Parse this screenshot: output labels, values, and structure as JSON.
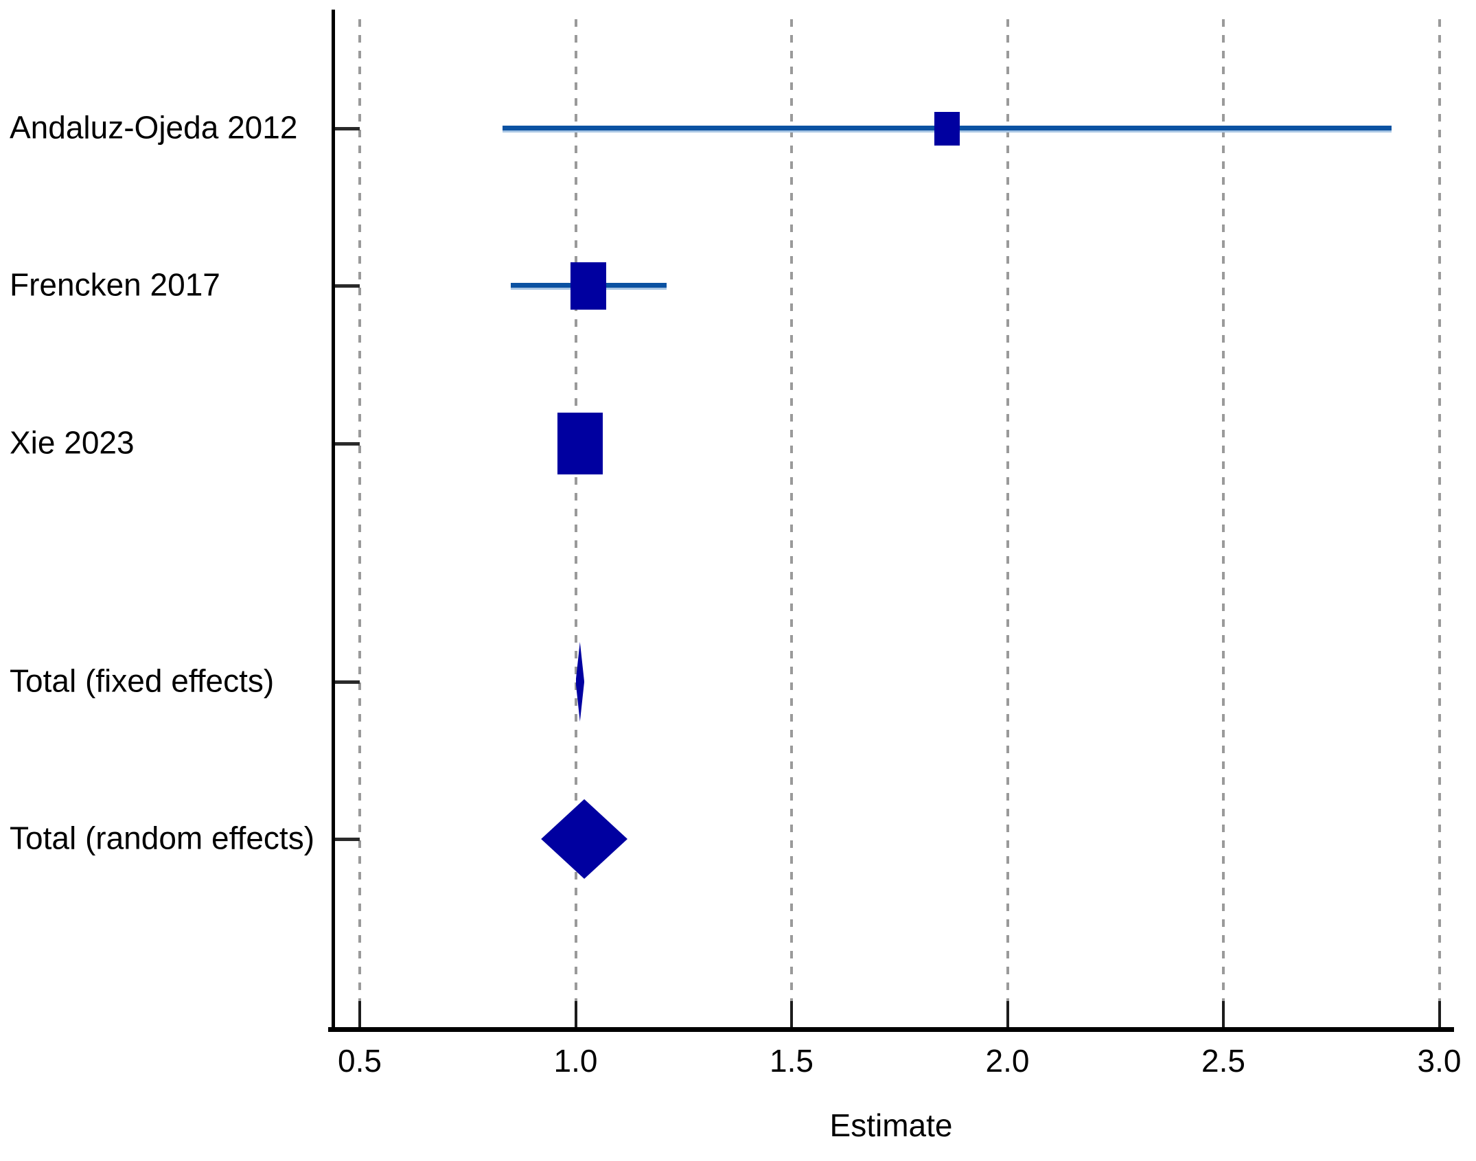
{
  "chart_data": {
    "type": "forest",
    "title": "",
    "xlabel": "Estimate",
    "x_tick_labels": [
      "0.5",
      "1.0",
      "1.5",
      "2.0",
      "2.5",
      "3.0"
    ],
    "x_tick_values": [
      0.5,
      1.0,
      1.5,
      2.0,
      2.5,
      3.0
    ],
    "xlim": [
      0.435,
      3.09
    ],
    "grid": "vertical-dashed",
    "legend": "none",
    "colors": {
      "marker": "#0000A0",
      "ci_line": "#0B52A2",
      "ci_line_fringe": "#A9C6E4",
      "grid": "#9A9A9A",
      "axis": "#000000",
      "text": "#000000",
      "background": "#FFFFFF"
    },
    "studies": [
      {
        "label": "Andaluz-Ojeda 2012",
        "estimate": 1.86,
        "ci_low": 0.83,
        "ci_high": 2.89,
        "marker": "square",
        "marker_w": 37,
        "marker_h": 49
      },
      {
        "label": "Frencken 2017",
        "estimate": 1.03,
        "ci_low": 0.85,
        "ci_high": 1.21,
        "marker": "square",
        "marker_w": 52,
        "marker_h": 69
      },
      {
        "label": "Xie 2023",
        "estimate": 1.01,
        "ci_low": 0.96,
        "ci_high": 1.06,
        "marker": "square",
        "marker_w": 66,
        "marker_h": 90
      },
      {
        "label": "Total (fixed effects)",
        "estimate": 1.01,
        "ci_low": 1.0,
        "ci_high": 1.02,
        "marker": "diamond"
      },
      {
        "label": "Total (random effects)",
        "estimate": 1.02,
        "ci_low": 0.92,
        "ci_high": 1.12,
        "marker": "diamond"
      }
    ]
  }
}
